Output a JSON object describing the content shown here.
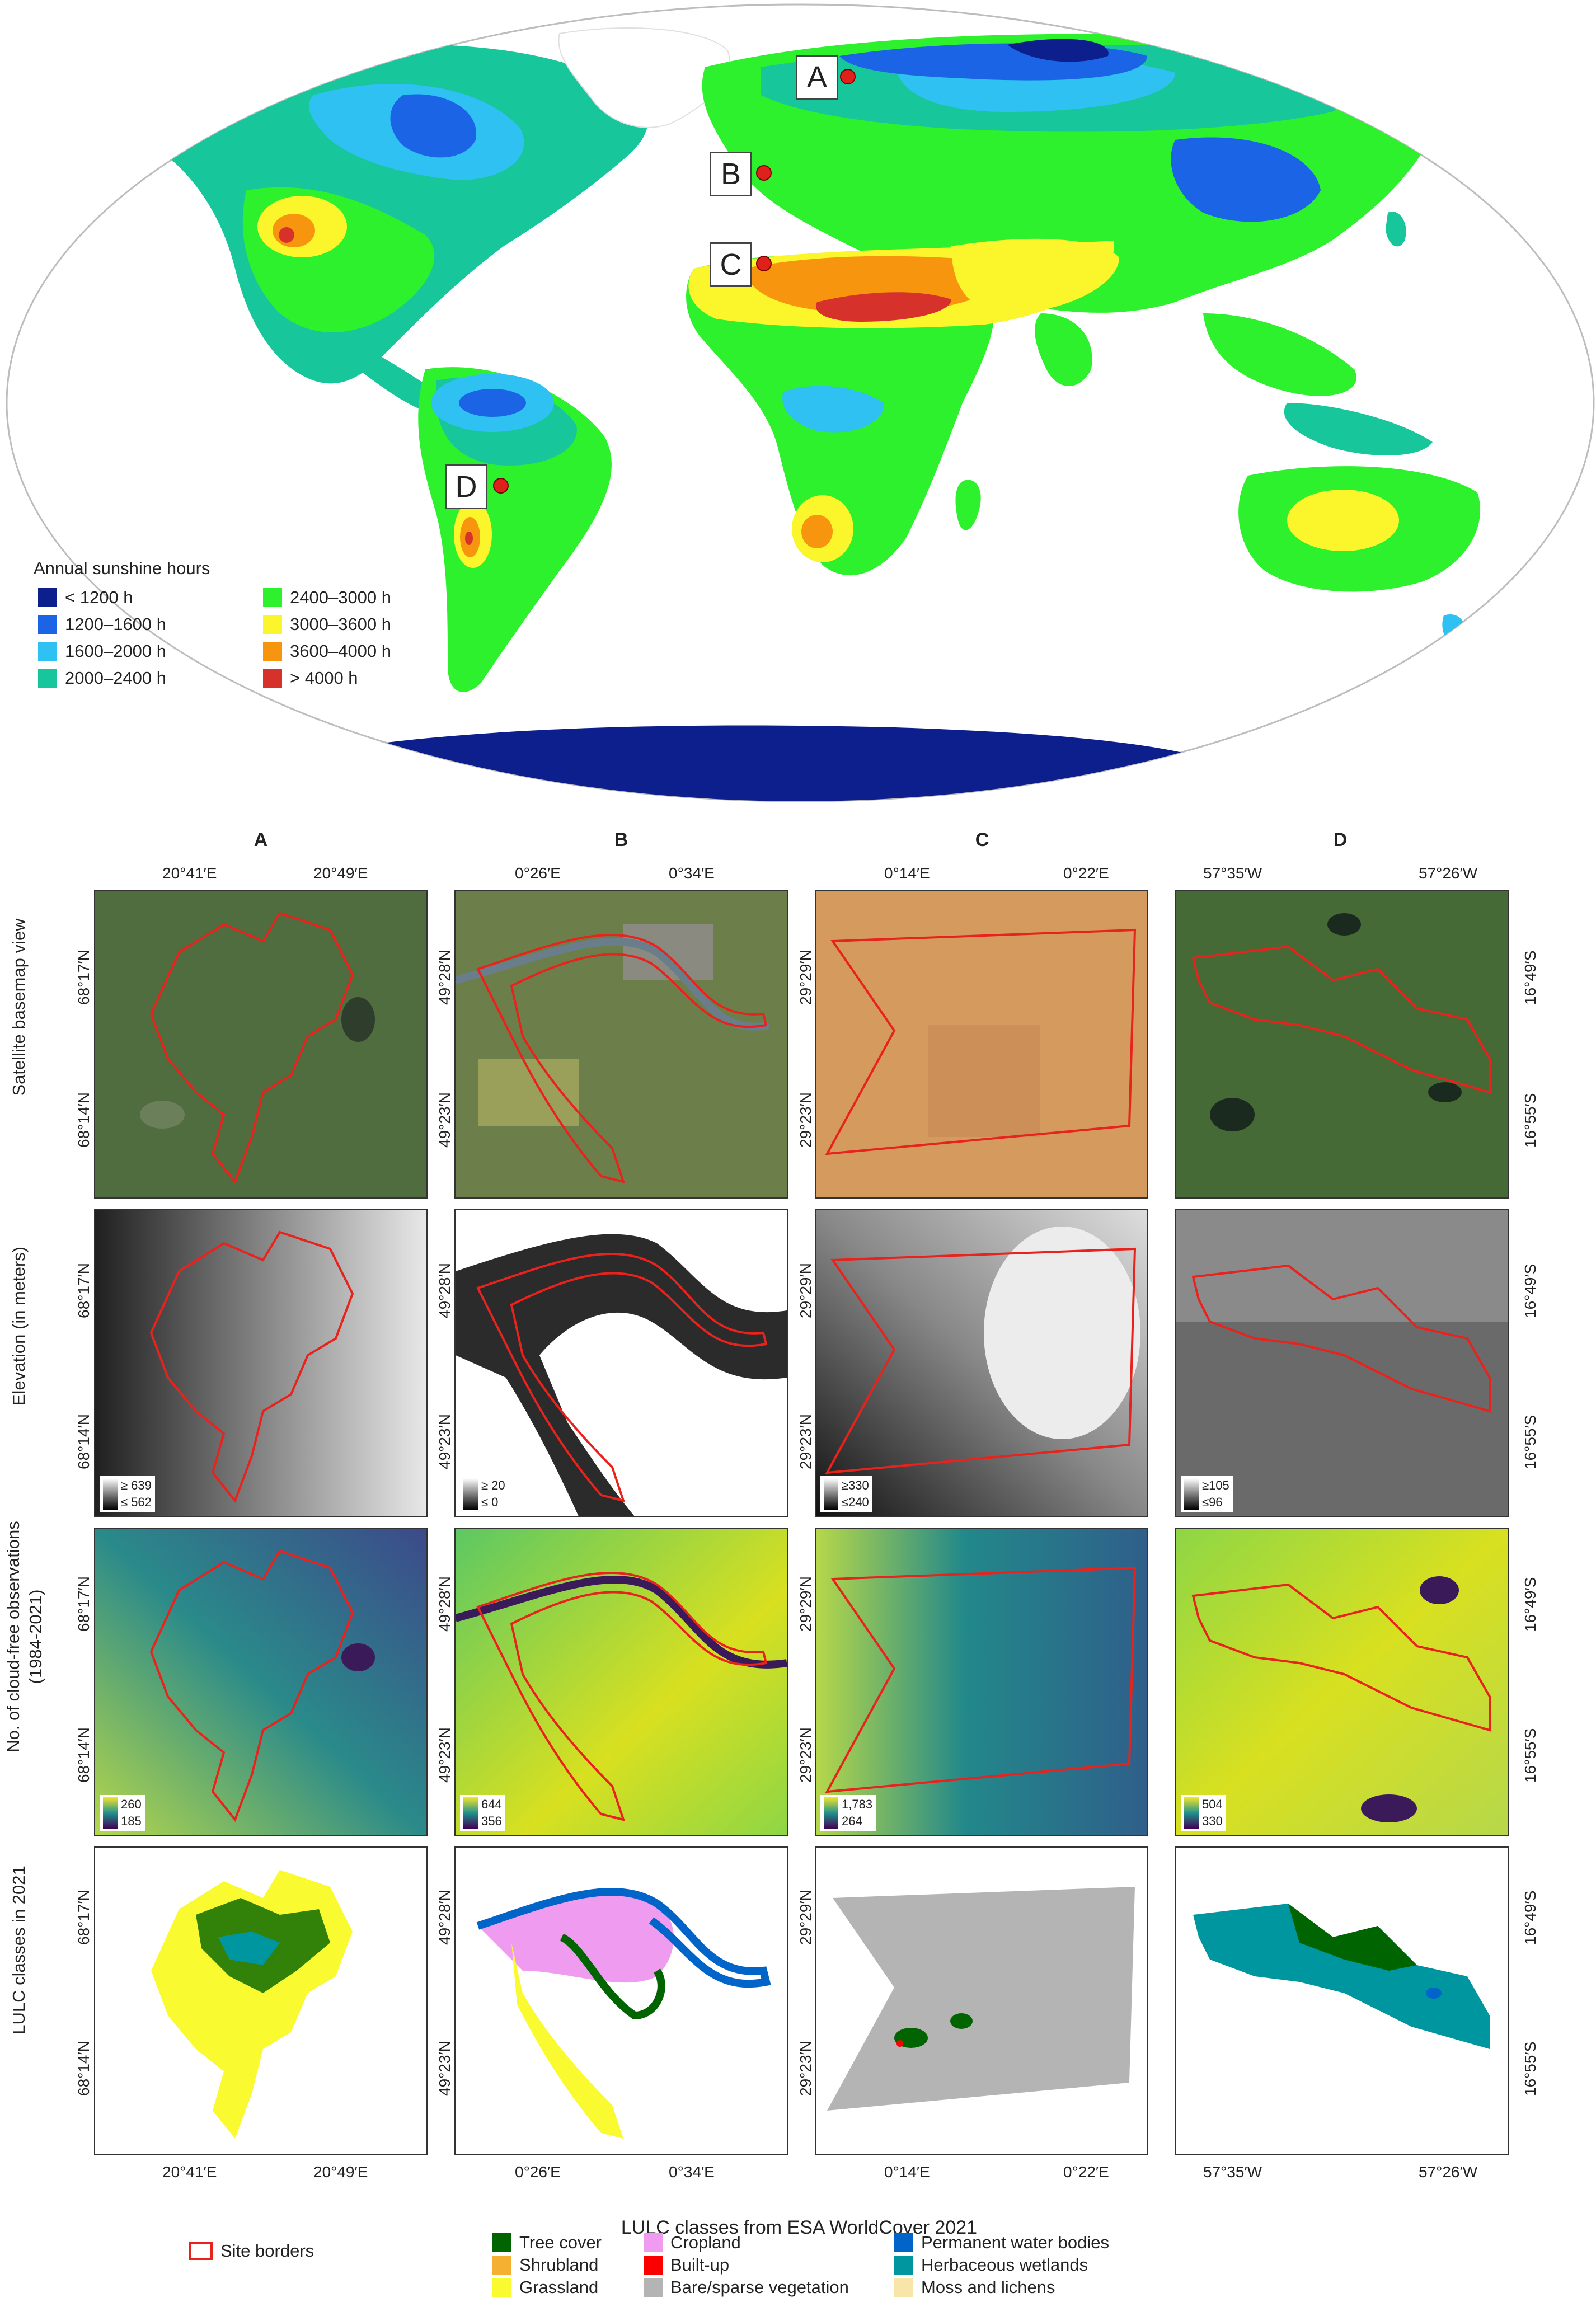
{
  "map": {
    "legend_title": "Annual sunshine hours",
    "legend": [
      {
        "label": "< 1200 h",
        "color": "#0d1f8c"
      },
      {
        "label": "1200–1600 h",
        "color": "#1c64e6"
      },
      {
        "label": "1600–2000 h",
        "color": "#2ec1f2"
      },
      {
        "label": "2000–2400 h",
        "color": "#17c79b"
      },
      {
        "label": "2400–3000 h",
        "color": "#2cf12c"
      },
      {
        "label": "3000–3600 h",
        "color": "#fbf52b"
      },
      {
        "label": "3600–4000 h",
        "color": "#f7960e"
      },
      {
        "label": "> 4000 h",
        "color": "#d6312a"
      }
    ],
    "sites": [
      "A",
      "B",
      "C",
      "D"
    ]
  },
  "grid": {
    "columns": [
      "A",
      "B",
      "C",
      "D"
    ],
    "top_ticks": [
      [
        "20°41′E",
        "20°49′E"
      ],
      [
        "0°26′E",
        "0°34′E"
      ],
      [
        "0°14′E",
        "0°22′E"
      ],
      [
        "57°35′W",
        "57°26′W"
      ]
    ],
    "bottom_ticks": [
      [
        "20°41′E",
        "20°49′E"
      ],
      [
        "0°26′E",
        "0°34′E"
      ],
      [
        "0°14′E",
        "0°22′E"
      ],
      [
        "57°35′W",
        "57°26′W"
      ]
    ],
    "lat_ticks": [
      [
        "68°17′N",
        "68°14′N"
      ],
      [
        "49°28′N",
        "49°23′N"
      ],
      [
        "29°29′N",
        "29°23′N"
      ],
      [
        "16°49′S",
        "16°55′S"
      ]
    ],
    "rows": [
      "Satellite basemap view",
      "Elevation (in meters)",
      "No. of cloud-free observations (1984-2021)",
      "LULC classes in 2021"
    ],
    "elevation_scales": [
      [
        "≥ 639",
        "≤ 562"
      ],
      [
        "≥ 20",
        "≤ 0"
      ],
      [
        "≥330",
        "≤240"
      ],
      [
        "≥105",
        "≤96"
      ]
    ],
    "obs_scales": [
      [
        "260",
        "185"
      ],
      [
        "644",
        "356"
      ],
      [
        "1,783",
        "264"
      ],
      [
        "504",
        "330"
      ]
    ]
  },
  "bottom_legend": {
    "title": "LULC classes from ESA WorldCover 2021",
    "site_borders": "Site borders",
    "classes": [
      {
        "label": "Tree cover",
        "color": "#006400"
      },
      {
        "label": "Shrubland",
        "color": "#f5b031"
      },
      {
        "label": "Grassland",
        "color": "#fafa30"
      },
      {
        "label": "Cropland",
        "color": "#ef9cf0"
      },
      {
        "label": "Built-up",
        "color": "#fa0000"
      },
      {
        "label": "Bare/sparse vegetation",
        "color": "#b4b4b4"
      },
      {
        "label": "Permanent water bodies",
        "color": "#0064c8"
      },
      {
        "label": "Herbaceous wetlands",
        "color": "#0096a0"
      },
      {
        "label": "Moss and lichens",
        "color": "#f8e5a8"
      }
    ]
  }
}
